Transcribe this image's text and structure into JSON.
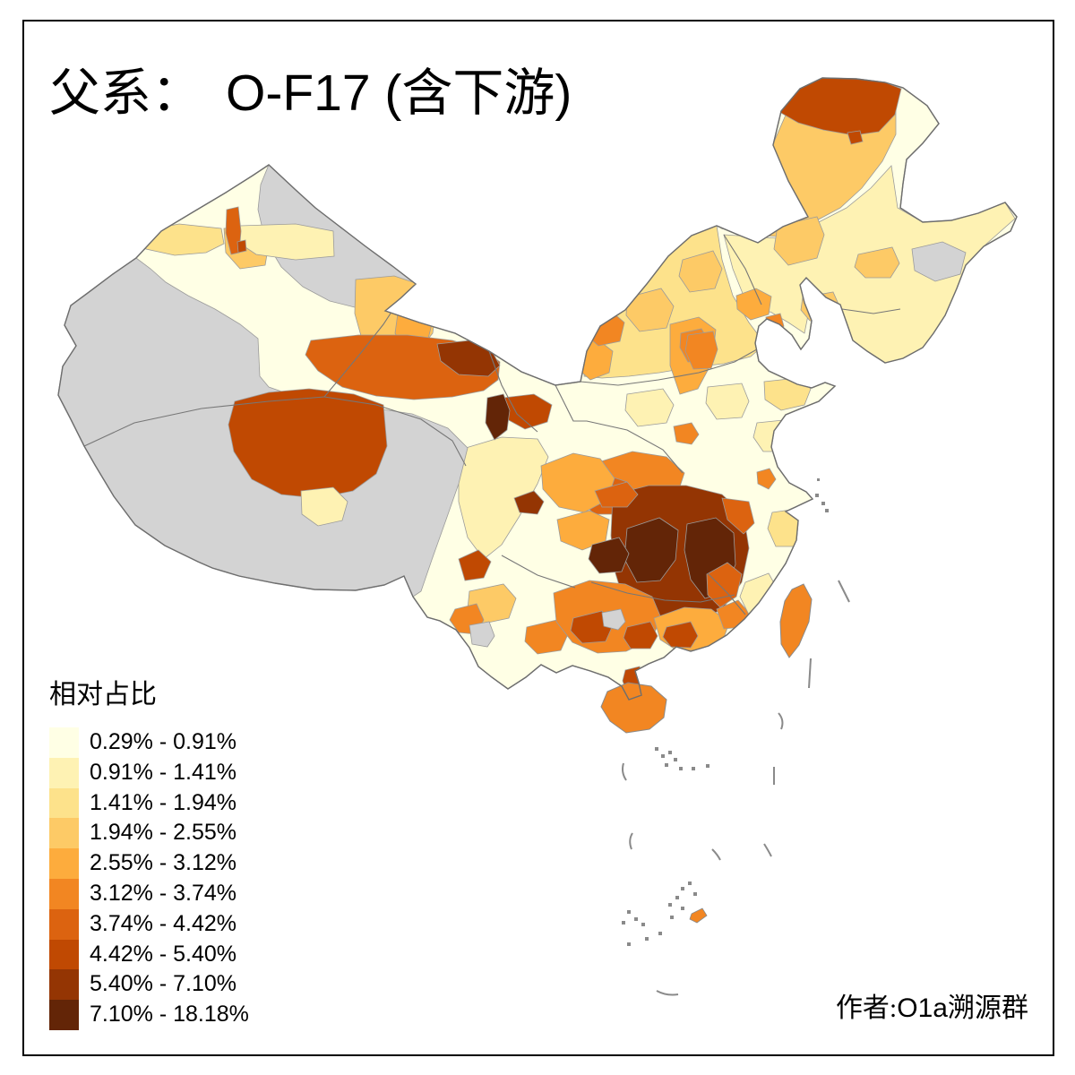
{
  "figure": {
    "background": "#FFFFFF",
    "frame_color": "#000000"
  },
  "title": {
    "prefix_zh": "父系：",
    "main_latin": "O-F17 (",
    "suffix_zh": "含下游",
    "close_latin": ")",
    "full": "父系： O-F17 (含下游)"
  },
  "legend": {
    "title": "相对占比",
    "classes": [
      {
        "key": "c1",
        "label": "0.29% - 0.91%",
        "color": "#FFFFE5"
      },
      {
        "key": "c2",
        "label": "0.91% - 1.41%",
        "color": "#FEF2B3"
      },
      {
        "key": "c3",
        "label": "1.41% - 1.94%",
        "color": "#FDE28B"
      },
      {
        "key": "c4",
        "label": "1.94% - 2.55%",
        "color": "#FDCA66"
      },
      {
        "key": "c5",
        "label": "2.55% - 3.12%",
        "color": "#FDAC3D"
      },
      {
        "key": "c6",
        "label": "3.12% - 3.74%",
        "color": "#F28622"
      },
      {
        "key": "c7",
        "label": "3.74% - 4.42%",
        "color": "#DC6310"
      },
      {
        "key": "c8",
        "label": "4.42% - 5.40%",
        "color": "#C04902"
      },
      {
        "key": "c9",
        "label": "5.40% - 7.10%",
        "color": "#943503"
      },
      {
        "key": "c10",
        "label": "7.10% - 18.18%",
        "color": "#632507"
      }
    ]
  },
  "caption": {
    "prefix_zh": "作者:",
    "latin": "O1a",
    "suffix_zh": "溯源群",
    "full": "作者:O1a溯源群"
  },
  "map": {
    "no_data_color": "#D3D3D3",
    "sea_color": "#FFFFFF",
    "boundary_color": "#9B9B9B",
    "province_border_color": "#777777",
    "national_border_color": "#6E6E6E",
    "region_classes": {
      "china_base": "c1",
      "gray_west": "nodata",
      "gray_junggar": "nodata",
      "ili_strip": "c3",
      "karamay": "c4",
      "north_slope": "c2",
      "shihezi_strip": "c7",
      "shihezi_dot": "c8",
      "hami": "c4",
      "hami_core": "c5",
      "qinghai_haixi": "c7",
      "qinghai_ne": "c9",
      "gannan_dark": "c10",
      "linxia": "c8",
      "qinghai_inner": "c7",
      "nagqu": "c8",
      "tibet_pale": "c2",
      "ningxia": "c5",
      "gansu_east": "c6",
      "shanxi": "c5",
      "shanxi_core": "c6",
      "beijing": "c5",
      "hebei_south": "c6",
      "tangshan": "c6",
      "henan_patch": "c6",
      "anhui_patch": "c6",
      "inner_mongolia": "c3",
      "im_east_a": "c4",
      "im_east_b": "c4",
      "im_gray": "nodata",
      "ne_north": "c4",
      "mohe": "c8",
      "mohe_dot": "c8",
      "ne_plain": "c2",
      "ne_patch_a": "c4",
      "ne_patch_b": "c4",
      "ne_patch_c": "c4",
      "ne_gray": "nodata",
      "shandong_patch": "c3",
      "ncp_patch_a": "c2",
      "ncp_patch_b": "c2",
      "ncp_patch_c": "c2",
      "hubei_west": "c6",
      "chongqing": "c7",
      "chengdu": "c5",
      "sichuan_dark": "c9",
      "sichuan_west": "c2",
      "lijiang": "c8",
      "yunnan_a": "c4",
      "yunnan_b": "c6",
      "yunnan_c": "c6",
      "yunnan_gray": "nodata",
      "south_core": "c9",
      "hunan_dark": "c10",
      "jiangxi_dark": "c10",
      "qiandongnan": "c10",
      "core_fringe_a": "c7",
      "core_fringe_b": "c7",
      "guizhou": "c5",
      "guangxi": "c6",
      "guangxi_dark_a": "c8",
      "guangxi_dark_b": "c8",
      "guangxi_gray": "nodata",
      "leizhou": "c8",
      "hainan": "c6",
      "guangdong": "c5",
      "guangdong_dark": "c8",
      "fujian_inland": "c7",
      "chaoshan": "c6",
      "zhejiang_patch": "c3",
      "fujian_coast": "c2",
      "taiwan": "c6",
      "spratly_orange": "c6"
    }
  },
  "chart_data": {
    "type": "choropleth",
    "title": "父系： O-F17 (含下游)",
    "legend_title": "相对占比",
    "unit": "%",
    "class_breaks": [
      0.29,
      0.91,
      1.41,
      1.94,
      2.55,
      3.12,
      3.74,
      4.42,
      5.4,
      7.1,
      18.18
    ],
    "classes": [
      {
        "range": "0.29% - 0.91%",
        "color": "#FFFFE5"
      },
      {
        "range": "0.91% - 1.41%",
        "color": "#FEF2B3"
      },
      {
        "range": "1.41% - 1.94%",
        "color": "#FDE28B"
      },
      {
        "range": "1.94% - 2.55%",
        "color": "#FDCA66"
      },
      {
        "range": "2.55% - 3.12%",
        "color": "#FDAC3D"
      },
      {
        "range": "3.12% - 3.74%",
        "color": "#F28622"
      },
      {
        "range": "3.74% - 4.42%",
        "color": "#DC6310"
      },
      {
        "range": "4.42% - 5.40%",
        "color": "#C04902"
      },
      {
        "range": "5.40% - 7.10%",
        "color": "#943503"
      },
      {
        "range": "7.10% - 18.18%",
        "color": "#632507"
      }
    ],
    "no_data_color": "#D3D3D3",
    "author": "作者:O1a溯源群"
  }
}
